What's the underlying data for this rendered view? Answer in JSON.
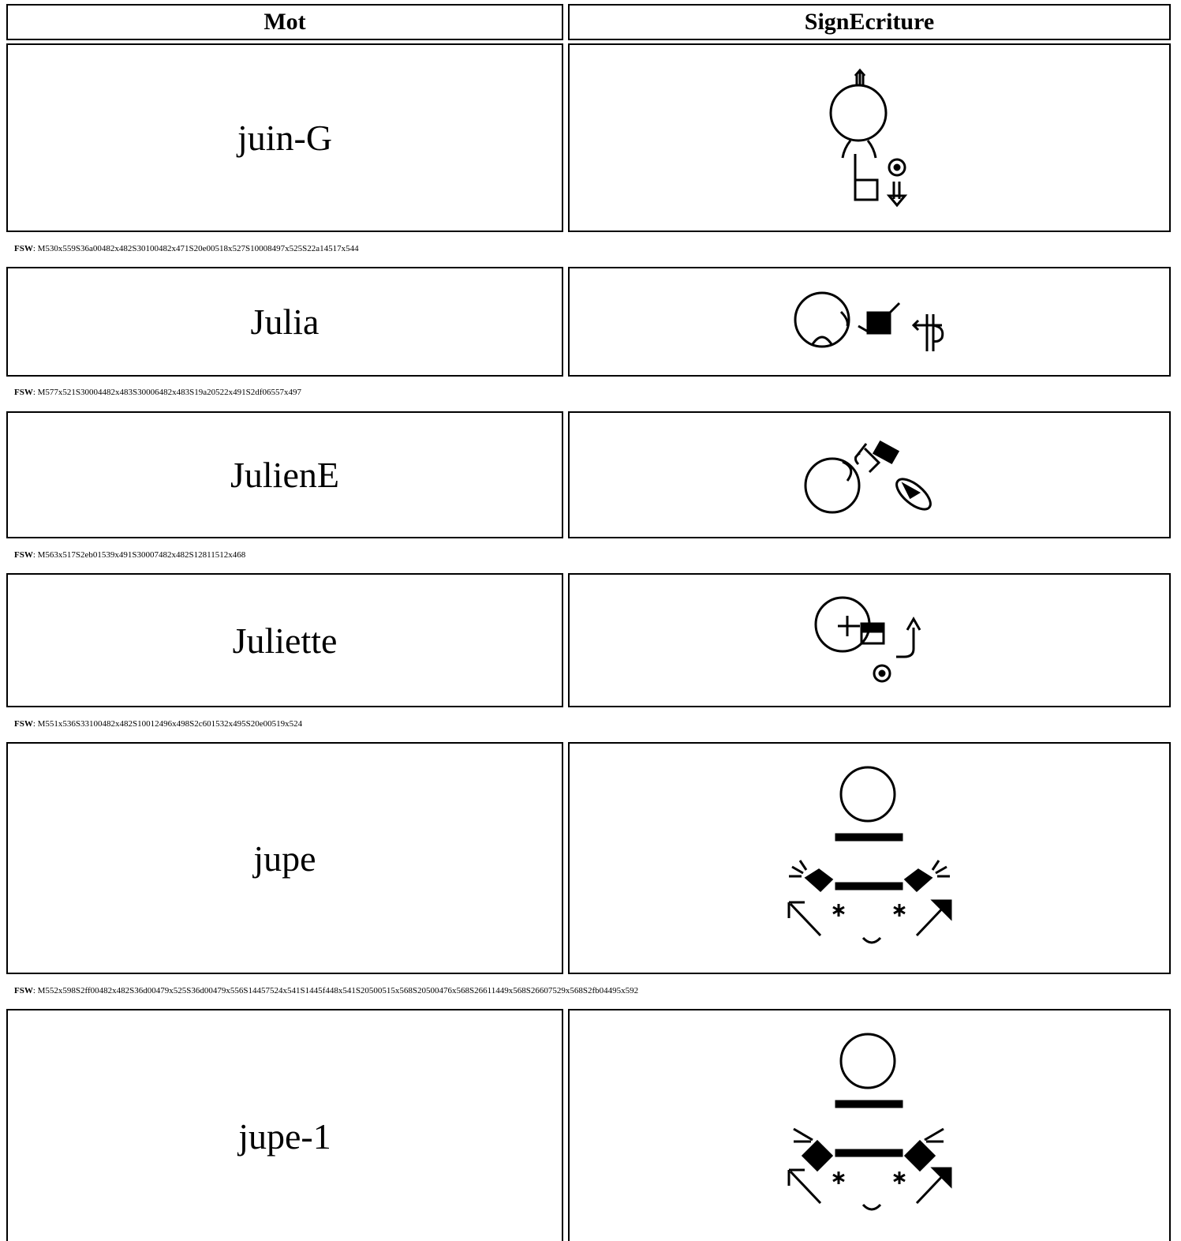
{
  "table": {
    "header": [
      "Mot",
      "SignEcriture"
    ],
    "fsw_label": "FSW",
    "fsw_separator": ": ",
    "rows": [
      {
        "word": "juin-G",
        "fsw": "M530x559S36a00482x482S30100482x471S20e00518x527S10008497x525S22a14517x544"
      },
      {
        "word": "Julia",
        "fsw": "M577x521S30004482x483S30006482x483S19a20522x491S2df06557x497"
      },
      {
        "word": "JulienE",
        "fsw": "M563x517S2eb01539x491S30007482x482S12811512x468"
      },
      {
        "word": "Juliette",
        "fsw": "M551x536S33100482x482S10012496x498S2c601532x495S20e00519x524"
      },
      {
        "word": "jupe",
        "fsw": "M552x598S2ff00482x482S36d00479x525S36d00479x556S14457524x541S1445f448x541S20500515x568S20500476x568S26611449x568S26607529x568S2fb04495x592"
      },
      {
        "word": "jupe-1"
      }
    ]
  }
}
